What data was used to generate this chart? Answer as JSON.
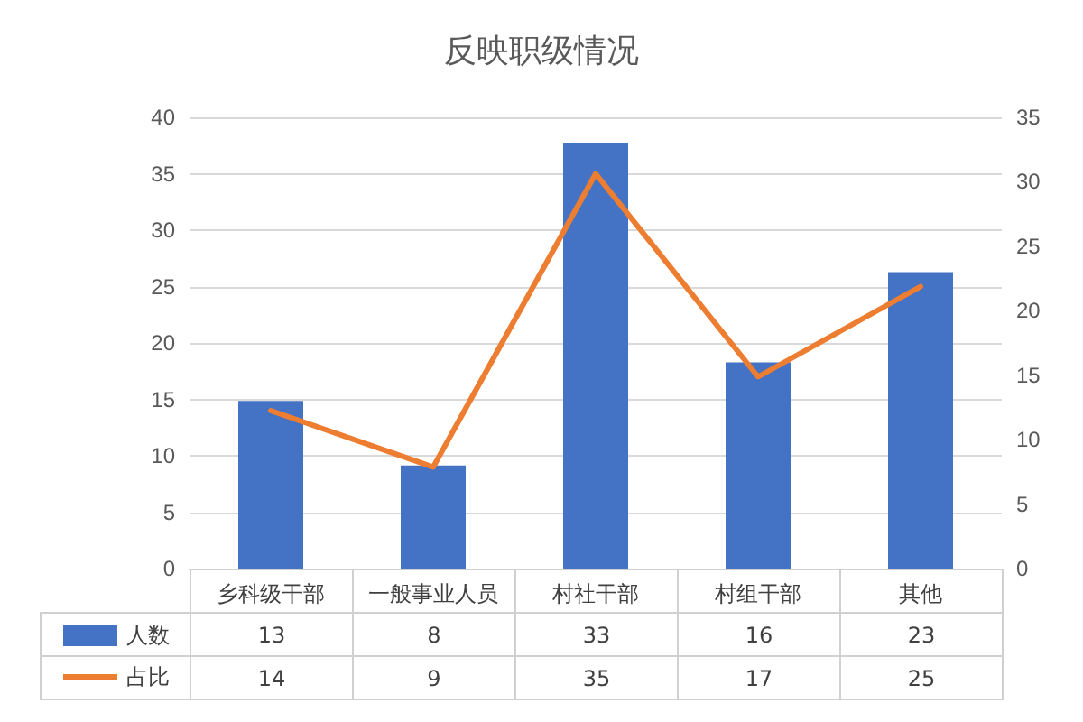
{
  "chart_data": {
    "type": "bar",
    "title": "反映职级情况",
    "categories": [
      "乡科级干部",
      "一般事业人员",
      "村社干部",
      "村组干部",
      "其他"
    ],
    "series": [
      {
        "name": "人数",
        "axis": "y2",
        "color": "#4472c4",
        "values": [
          13,
          8,
          33,
          16,
          23
        ]
      },
      {
        "name": "占比",
        "type": "line",
        "color": "#ed7d31",
        "values": [
          14,
          9,
          35,
          17,
          25
        ]
      }
    ],
    "ylim": [
      0,
      40
    ],
    "yticks": [
      0,
      5,
      10,
      15,
      20,
      25,
      30,
      35,
      40
    ],
    "y2lim": [
      0,
      35
    ],
    "y2ticks": [
      0,
      5,
      10,
      15,
      20,
      25,
      30,
      35
    ],
    "grid": "y",
    "legend": "bottom left",
    "marker": "none",
    "line_style": "solid",
    "data_labels": true
  }
}
